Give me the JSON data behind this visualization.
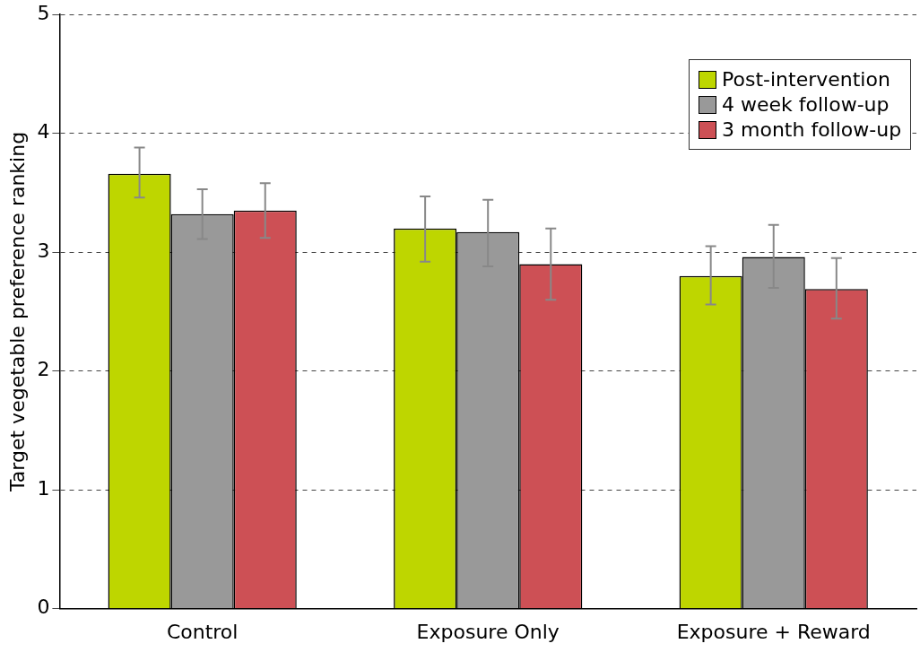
{
  "chart_data": {
    "type": "bar",
    "ylabel": "Target vegetable preference ranking",
    "categories": [
      "Control",
      "Exposure Only",
      "Exposure + Reward"
    ],
    "series": [
      {
        "name": "Post-intervention",
        "color": "#bed600",
        "values": [
          3.66,
          3.2,
          2.8
        ],
        "errors": [
          [
            3.46,
            3.88
          ],
          [
            2.92,
            3.47
          ],
          [
            2.56,
            3.05
          ]
        ]
      },
      {
        "name": "4 week follow-up",
        "color": "#999999",
        "values": [
          3.32,
          3.17,
          2.96
        ],
        "errors": [
          [
            3.11,
            3.53
          ],
          [
            2.88,
            3.44
          ],
          [
            2.7,
            3.23
          ]
        ]
      },
      {
        "name": "3 month follow-up",
        "color": "#cd5055",
        "values": [
          3.35,
          2.9,
          2.69
        ],
        "errors": [
          [
            3.12,
            3.58
          ],
          [
            2.6,
            3.2
          ],
          [
            2.44,
            2.95
          ]
        ]
      }
    ],
    "ylim": [
      0,
      5
    ],
    "yticks": [
      0,
      1,
      2,
      3,
      4,
      5
    ],
    "grid": "y",
    "legend": "top right"
  }
}
